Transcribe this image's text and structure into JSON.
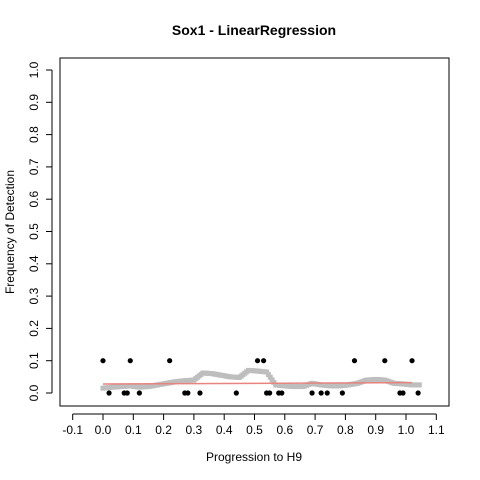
{
  "chart_data": {
    "type": "scatter",
    "title": "Sox1 - LinearRegression",
    "xlabel": "Progression to H9",
    "ylabel": "Frequency of Detection",
    "xlim": [
      -0.1,
      1.1
    ],
    "ylim": [
      0.0,
      1.0
    ],
    "x_ticks": [
      "-0.1",
      "0.0",
      "0.1",
      "0.2",
      "0.3",
      "0.4",
      "0.5",
      "0.6",
      "0.7",
      "0.8",
      "0.9",
      "1.0",
      "1.1"
    ],
    "y_ticks": [
      "0.0",
      "0.1",
      "0.2",
      "0.3",
      "0.4",
      "0.5",
      "0.6",
      "0.7",
      "0.8",
      "0.9",
      "1.0"
    ],
    "grid": false,
    "colors": {
      "observed": "#000000",
      "smoothed": "#bebebe",
      "fit": "#e8837e"
    },
    "observed": {
      "x": [
        0.0,
        0.02,
        0.07,
        0.08,
        0.09,
        0.12,
        0.22,
        0.27,
        0.28,
        0.32,
        0.44,
        0.51,
        0.53,
        0.54,
        0.55,
        0.58,
        0.59,
        0.69,
        0.72,
        0.74,
        0.79,
        0.83,
        0.93,
        0.98,
        0.99,
        1.02,
        1.04
      ],
      "y": [
        0.1,
        0.0,
        0.0,
        0.0,
        0.1,
        0.0,
        0.1,
        0.0,
        0.0,
        0.0,
        0.0,
        0.1,
        0.1,
        0.0,
        0.0,
        0.0,
        0.0,
        0.0,
        0.0,
        0.0,
        0.0,
        0.1,
        0.1,
        0.0,
        0.0,
        0.1,
        0.0
      ]
    },
    "smoothed": {
      "x": [
        0.0,
        0.03,
        0.06,
        0.09,
        0.12,
        0.15,
        0.18,
        0.21,
        0.24,
        0.27,
        0.3,
        0.33,
        0.36,
        0.39,
        0.42,
        0.45,
        0.48,
        0.51,
        0.54,
        0.57,
        0.6,
        0.63,
        0.66,
        0.69,
        0.72,
        0.75,
        0.78,
        0.81,
        0.84,
        0.87,
        0.9,
        0.93,
        0.96,
        0.99,
        1.02
      ],
      "y": [
        0.015,
        0.018,
        0.02,
        0.022,
        0.018,
        0.02,
        0.025,
        0.03,
        0.035,
        0.038,
        0.04,
        0.062,
        0.06,
        0.055,
        0.05,
        0.048,
        0.07,
        0.068,
        0.065,
        0.025,
        0.022,
        0.02,
        0.02,
        0.03,
        0.025,
        0.022,
        0.022,
        0.025,
        0.03,
        0.04,
        0.042,
        0.04,
        0.03,
        0.028,
        0.025
      ]
    },
    "fit": {
      "x": [
        0.0,
        1.02
      ],
      "y": [
        0.028,
        0.032
      ]
    }
  }
}
